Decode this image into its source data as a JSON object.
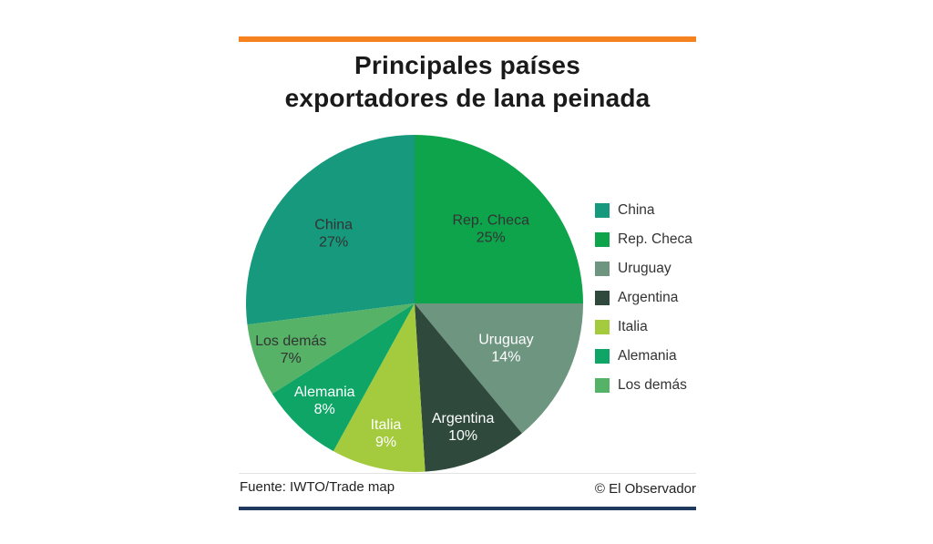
{
  "page": {
    "accent_bar_color": "#f5821f",
    "bottom_bar_color": "#20395f"
  },
  "header": {
    "title_line1": "Principales países",
    "title_line2": "exportadores de lana peinada"
  },
  "chart_data": {
    "type": "pie",
    "title": "Principales países exportadores de lana peinada",
    "start_angle_deg": -97.2,
    "direction": "clockwise",
    "legend_position": "right",
    "slices": [
      {
        "label": "China",
        "value": 27,
        "pct_label": "27%",
        "color": "#16997c",
        "label_color": "#333333"
      },
      {
        "label": "Rep. Checa",
        "value": 25,
        "pct_label": "25%",
        "color": "#0ea44c",
        "label_color": "#333333"
      },
      {
        "label": "Uruguay",
        "value": 14,
        "pct_label": "14%",
        "color": "#6e9580",
        "label_color": "#ffffff"
      },
      {
        "label": "Argentina",
        "value": 10,
        "pct_label": "10%",
        "color": "#2f4a3c",
        "label_color": "#ffffff"
      },
      {
        "label": "Italia",
        "value": 9,
        "pct_label": "9%",
        "color": "#a4ca3e",
        "label_color": "#ffffff"
      },
      {
        "label": "Alemania",
        "value": 8,
        "pct_label": "8%",
        "color": "#0fa567",
        "label_color": "#ffffff"
      },
      {
        "label": "Los demás",
        "value": 7,
        "pct_label": "7%",
        "color": "#55b266",
        "label_color": "#333333"
      }
    ]
  },
  "footer": {
    "source": "Fuente: IWTO/Trade map",
    "credit": "© El Observador"
  }
}
